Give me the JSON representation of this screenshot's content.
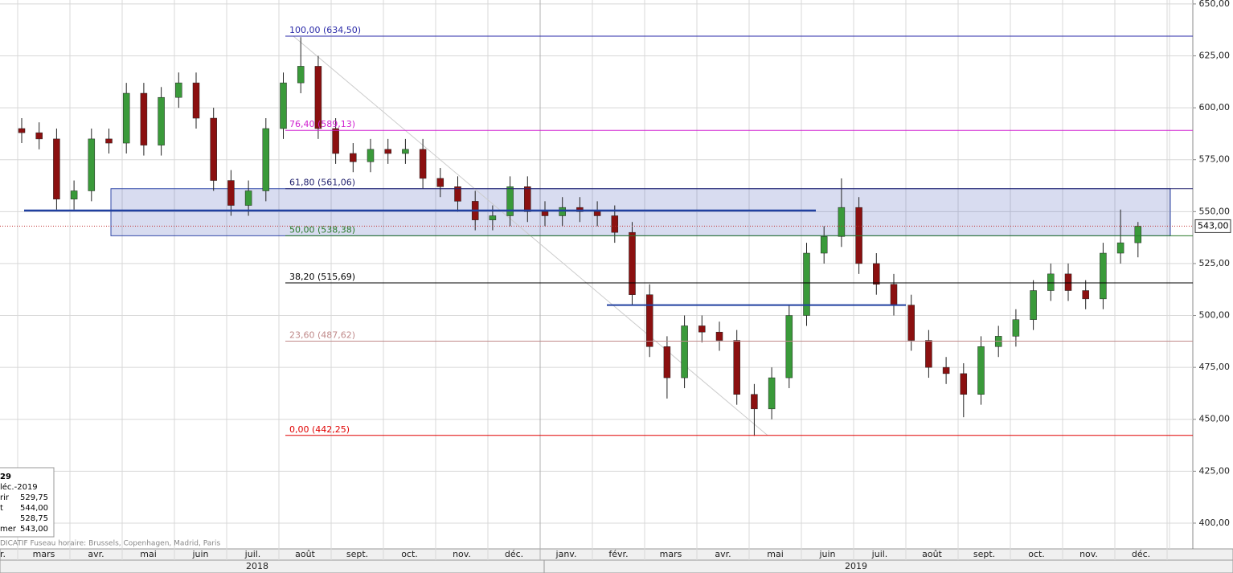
{
  "chart_data": {
    "type": "candlestick",
    "open": [
      590,
      588,
      585,
      556,
      560,
      585,
      583,
      607,
      582,
      605,
      612,
      595,
      565,
      553,
      560,
      590,
      612,
      620,
      590,
      578,
      574,
      580,
      578,
      580,
      566,
      562,
      555,
      546,
      548,
      562,
      550,
      548,
      552,
      550,
      548,
      540,
      510,
      485,
      470,
      495,
      492,
      488,
      462,
      455,
      470,
      500,
      530,
      538,
      552,
      525,
      515,
      505,
      488,
      475,
      472,
      462,
      485,
      490,
      498,
      512,
      520,
      512,
      508,
      530,
      535
    ],
    "high": [
      595,
      593,
      590,
      565,
      590,
      590,
      612,
      612,
      610,
      617,
      617,
      600,
      570,
      565,
      595,
      617,
      634,
      625,
      595,
      583,
      585,
      585,
      585,
      585,
      571,
      567,
      560,
      553,
      567,
      567,
      555,
      557,
      557,
      555,
      553,
      545,
      515,
      490,
      500,
      500,
      497,
      493,
      467,
      475,
      505,
      535,
      543,
      566,
      557,
      530,
      520,
      510,
      493,
      480,
      477,
      490,
      495,
      503,
      517,
      525,
      525,
      517,
      535,
      551,
      545
    ],
    "low": [
      583,
      580,
      551,
      551,
      555,
      578,
      578,
      577,
      577,
      600,
      590,
      560,
      548,
      548,
      555,
      585,
      607,
      585,
      573,
      569,
      569,
      573,
      573,
      561,
      557,
      550,
      541,
      541,
      543,
      545,
      543,
      543,
      545,
      543,
      535,
      505,
      480,
      460,
      465,
      487,
      483,
      457,
      442,
      450,
      465,
      495,
      525,
      533,
      520,
      510,
      500,
      483,
      470,
      467,
      451,
      457,
      480,
      485,
      493,
      507,
      507,
      503,
      503,
      525,
      528
    ],
    "close": [
      588,
      585,
      556,
      560,
      585,
      583,
      607,
      582,
      605,
      612,
      595,
      565,
      553,
      560,
      590,
      612,
      620,
      590,
      578,
      574,
      580,
      578,
      580,
      566,
      562,
      555,
      546,
      548,
      562,
      550,
      548,
      552,
      550,
      548,
      540,
      510,
      485,
      470,
      495,
      492,
      488,
      462,
      455,
      470,
      500,
      530,
      538,
      552,
      525,
      515,
      505,
      488,
      475,
      472,
      462,
      485,
      490,
      498,
      512,
      520,
      512,
      508,
      530,
      535,
      543
    ],
    "up_color": "#3a9a3a",
    "down_color": "#8b1010",
    "categories": [
      "r.",
      "mars",
      "avr.",
      "mai",
      "juin",
      "juil.",
      "août",
      "sept.",
      "oct.",
      "nov.",
      "déc.",
      "janv.",
      "févr.",
      "mars",
      "avr.",
      "mai",
      "juin",
      "juil.",
      "août",
      "sept.",
      "oct.",
      "nov.",
      "déc."
    ],
    "years": [
      "2018",
      "2019"
    ],
    "ylim": [
      387.6,
      651.9
    ],
    "yticks": [
      {
        "value": 400,
        "label": "400,00"
      },
      {
        "value": 425,
        "label": "425,00"
      },
      {
        "value": 450,
        "label": "450,00"
      },
      {
        "value": 475,
        "label": "475,00"
      },
      {
        "value": 500,
        "label": "500,00"
      },
      {
        "value": 525,
        "label": "525,00"
      },
      {
        "value": 550,
        "label": "550,00"
      },
      {
        "value": 575,
        "label": "575,00"
      },
      {
        "value": 600,
        "label": "600,00"
      },
      {
        "value": 625,
        "label": "625,00"
      },
      {
        "value": 650,
        "label": "650,00"
      }
    ],
    "grid": true,
    "fib_levels": [
      {
        "value": 634.5,
        "label": "100,00 (634,50)",
        "color": "#2a2aa8"
      },
      {
        "value": 589.13,
        "label": "76,40 (589,13)",
        "color": "#d020d0"
      },
      {
        "value": 561.06,
        "label": "61,80 (561,06)",
        "color": "#22226e"
      },
      {
        "value": 538.38,
        "label": "50,00 (538,38)",
        "color": "#2a7a2a"
      },
      {
        "value": 515.69,
        "label": "38,20 (515,69)",
        "color": "#000000"
      },
      {
        "value": 487.62,
        "label": "23,60 (487,62)",
        "color": "#c08a8a"
      },
      {
        "value": 442.25,
        "label": "0,00 (442,25)",
        "color": "#e00000"
      }
    ],
    "zone": [
      538.38,
      561.06
    ],
    "support_lines": [
      550.5,
      505
    ],
    "last_price": {
      "value": 543,
      "label": "543,00"
    }
  },
  "info_panel": {
    "lines": [
      "29",
      "léc.-2019",
      "rir",
      "529,75",
      "t",
      "544,00",
      "528,75",
      "mer",
      "543,00"
    ]
  },
  "footer": "DICATIF   Fuseau horaire: Brussels, Copenhagen, Madrid, Paris"
}
